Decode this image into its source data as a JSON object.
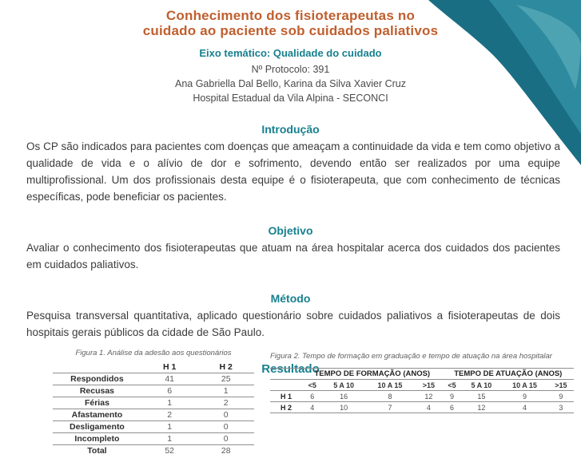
{
  "header": {
    "title": "Conhecimento dos fisioterapeutas no\ncuidado ao paciente sob cuidados paliativos",
    "theme_line": "Eixo temático: Qualidade do cuidado",
    "protocol": "Nº Protocolo: 391",
    "authors": "Ana Gabriella Dal Bello, Karina da Silva Xavier Cruz",
    "institution": "Hospital Estadual da Vila Alpina - SECONCI"
  },
  "colors": {
    "title_orange": "#c05f2e",
    "heading_teal": "#17808f",
    "corner_dark_teal": "#1a6e83",
    "corner_medium_teal": "#2e8a9e",
    "corner_light_teal": "#4da3b2"
  },
  "sections": {
    "introducao": {
      "heading": "Introdução",
      "body": "Os CP são indicados para pacientes com doenças que ameaçam a continuidade da vida e tem como objetivo a qualidade de vida e o alívio de dor e sofrimento, devendo então ser realizados por uma equipe multiprofissional. Um dos profissionais desta equipe é o fisioterapeuta, que com conhecimento de técnicas específicas, pode beneficiar os pacientes."
    },
    "objetivo": {
      "heading": "Objetivo",
      "body": "Avaliar o conhecimento dos fisioterapeutas que atuam na área hospitalar acerca dos cuidados dos pacientes em cuidados paliativos."
    },
    "metodo": {
      "heading": "Método",
      "body": "Pesquisa transversal quantitativa, aplicado questionário sobre cuidados paliativos a fisioterapeutas de dois hospitais gerais públicos da cidade de São Paulo."
    },
    "resultado": {
      "heading": "Resultado"
    }
  },
  "figures": {
    "fig1": {
      "caption": "Figura 1. Análise da adesão aos questionários",
      "columns": [
        "",
        "H 1",
        "H 2"
      ],
      "rows": [
        [
          "Respondidos",
          "41",
          "25"
        ],
        [
          "Recusas",
          "6",
          "1"
        ],
        [
          "Férias",
          "1",
          "2"
        ],
        [
          "Afastamento",
          "2",
          "0"
        ],
        [
          "Desligamento",
          "1",
          "0"
        ],
        [
          "Incompleto",
          "1",
          "0"
        ],
        [
          "Total",
          "52",
          "28"
        ]
      ]
    },
    "fig2": {
      "caption": "Figura 2. Tempo de formação em graduação e tempo de atuação na área hospitalar",
      "group_headers": [
        "TEMPO DE FORMAÇÃO (ANOS)",
        "TEMPO DE ATUAÇÃO (ANOS)"
      ],
      "sub_headers": [
        "<5",
        "5 A 10",
        "10 A 15",
        ">15",
        "<5",
        "5 A 10",
        "10 A 15",
        ">15"
      ],
      "rows": [
        [
          "H 1",
          "6",
          "16",
          "8",
          "12",
          "9",
          "15",
          "9",
          "9"
        ],
        [
          "H 2",
          "4",
          "10",
          "7",
          "4",
          "6",
          "12",
          "4",
          "3"
        ]
      ]
    }
  }
}
